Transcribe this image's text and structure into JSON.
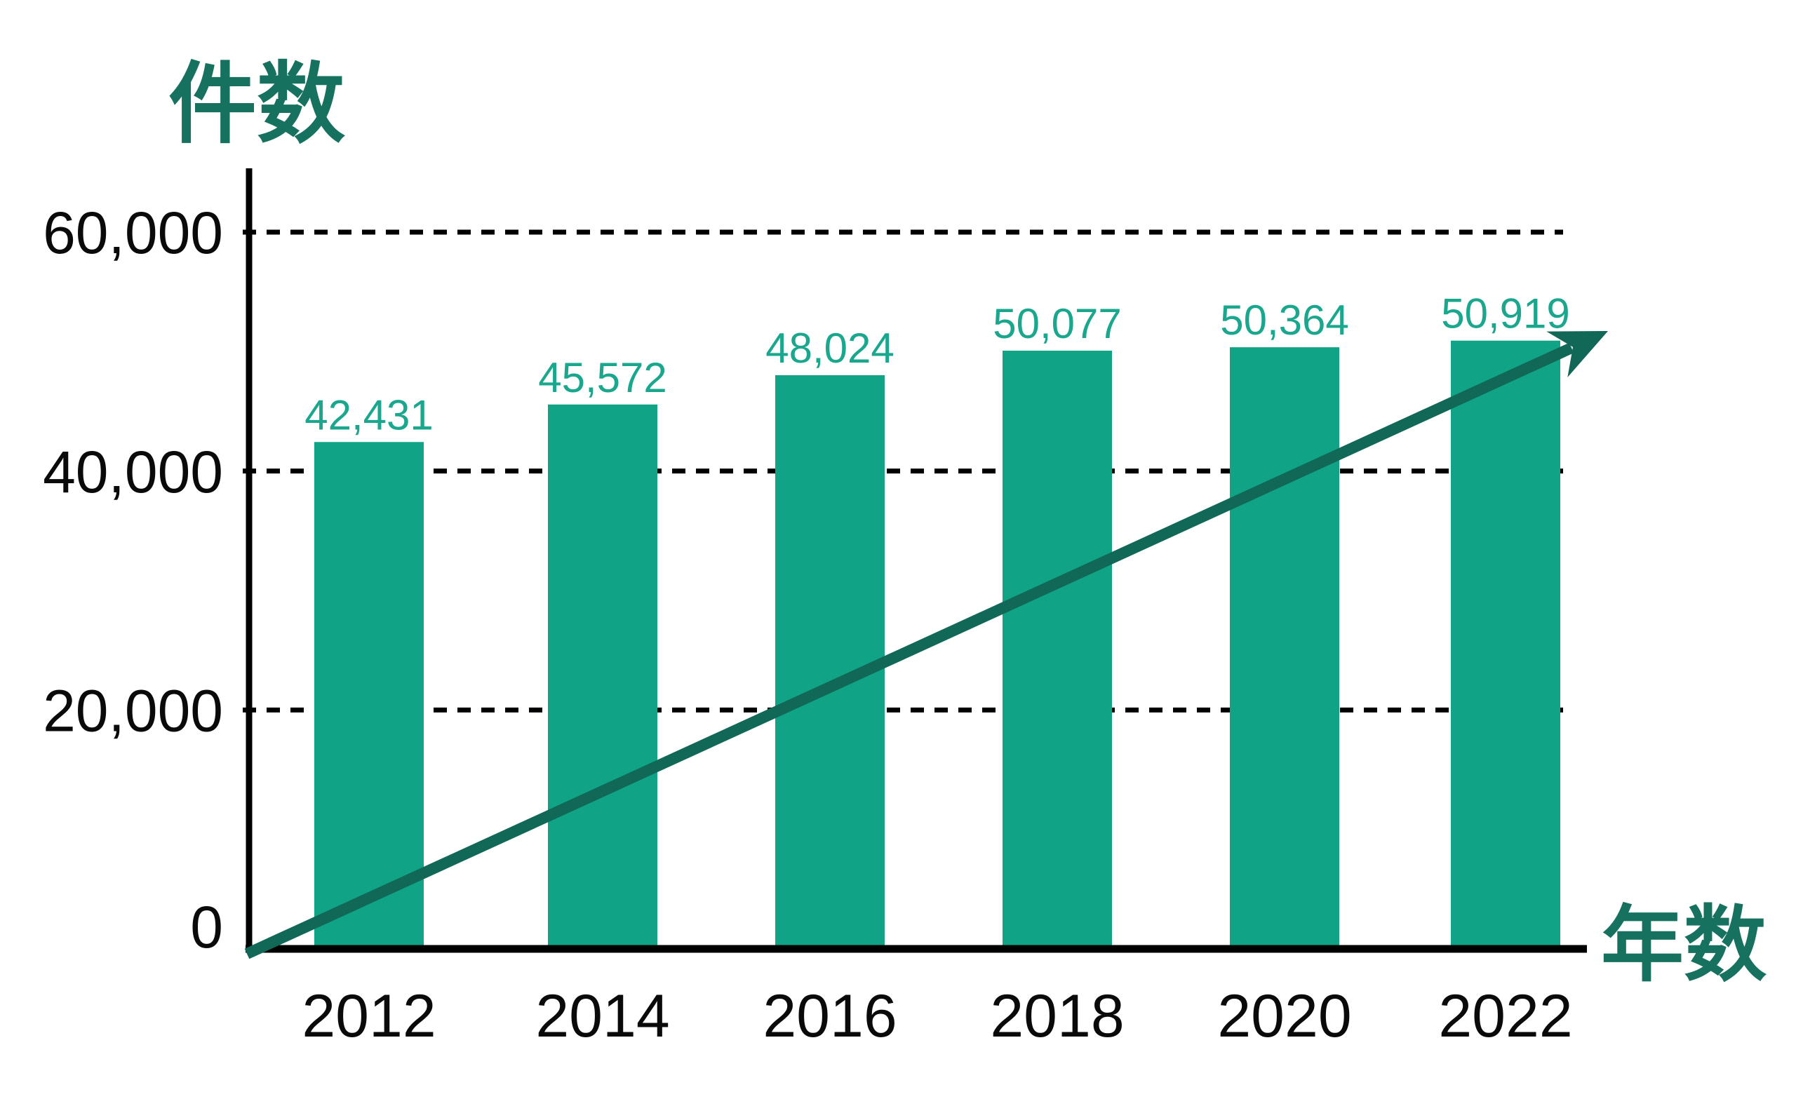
{
  "chart_data": {
    "type": "bar",
    "title": "件数",
    "xlabel": "年数",
    "categories": [
      "2012",
      "2014",
      "2016",
      "2018",
      "2020",
      "2022"
    ],
    "values": [
      42431,
      45572,
      48024,
      50077,
      50364,
      50919
    ],
    "value_labels": [
      "42,431",
      "45,572",
      "48,024",
      "50,077",
      "50,364",
      "50,919"
    ],
    "y_ticks": [
      {
        "value": 60000,
        "label": "60,000"
      },
      {
        "value": 40000,
        "label": "40,000"
      },
      {
        "value": 20000,
        "label": "20,000"
      },
      {
        "value": 0,
        "label": "0"
      }
    ],
    "ylim": [
      0,
      60000
    ],
    "grid": "horizontal-dashed",
    "legend": "none",
    "annotations": [
      {
        "type": "trend-arrow",
        "description": "Straight diagonal arrow from the axis origin rising to the upper right above the last bar"
      }
    ],
    "colors": {
      "bar": "#11a386",
      "value_label": "#1ba78d",
      "axis": "#000000",
      "tick_label": "#0a0a0a",
      "title": "#17715f",
      "arrow": "#116857",
      "background": "#ffffff"
    }
  }
}
